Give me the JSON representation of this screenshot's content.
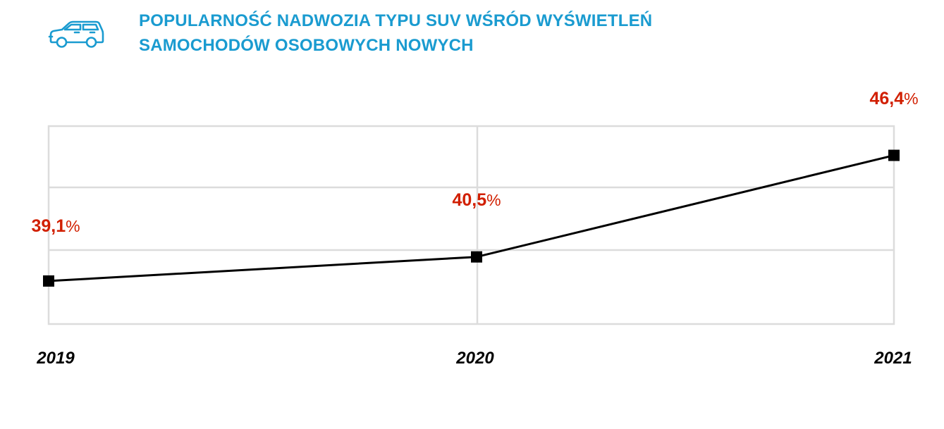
{
  "header": {
    "title_line1": "POPULARNOŚĆ NADWOZIA TYPU SUV WŚRÓD WYŚWIETLEŃ",
    "title_line2": "SAMOCHODÓW OSOBOWYCH NOWYCH",
    "icon": "suv-car-icon"
  },
  "colors": {
    "title": "#1a9bd0",
    "value_labels": "#d11f00",
    "line": "#000000",
    "grid": "#dcdcdc"
  },
  "chart_data": {
    "type": "line",
    "title": "POPULARNOŚĆ NADWOZIA TYPU SUV WŚRÓD WYŚWIETLEŃ SAMOCHODÓW OSOBOWYCH NOWYCH",
    "xlabel": "",
    "ylabel": "",
    "categories": [
      "2019",
      "2020",
      "2021"
    ],
    "values": [
      39.1,
      40.5,
      46.4
    ],
    "data_labels": [
      {
        "number": "39,1",
        "unit": "%"
      },
      {
        "number": "40,5",
        "unit": "%"
      },
      {
        "number": "46,4",
        "unit": "%"
      }
    ],
    "ylim": [
      36.6,
      48.1
    ],
    "grid": true,
    "legend": "none",
    "marker": "square"
  }
}
